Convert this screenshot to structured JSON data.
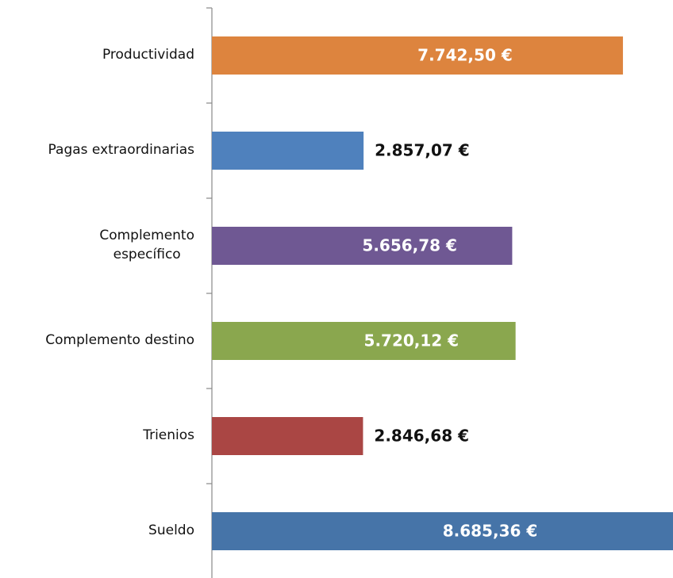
{
  "chart_data": {
    "type": "bar",
    "orientation": "horizontal",
    "categories": [
      "Productividad",
      "Pagas extraordinarias",
      "Complemento\nespecífico",
      "Complemento destino",
      "Trienios",
      "Sueldo"
    ],
    "values": [
      7742.5,
      2857.07,
      5656.78,
      5720.12,
      2846.68,
      8685.36
    ],
    "value_labels": [
      "7.742,50 €",
      "2.857,07 €",
      "5.656,78 €",
      "5.720,12 €",
      "2.846,68 €",
      "8.685,36 €"
    ],
    "colors": [
      "#dd843e",
      "#4f81bd",
      "#6f5893",
      "#8aa74e",
      "#aa4644",
      "#4674a8"
    ]
  }
}
